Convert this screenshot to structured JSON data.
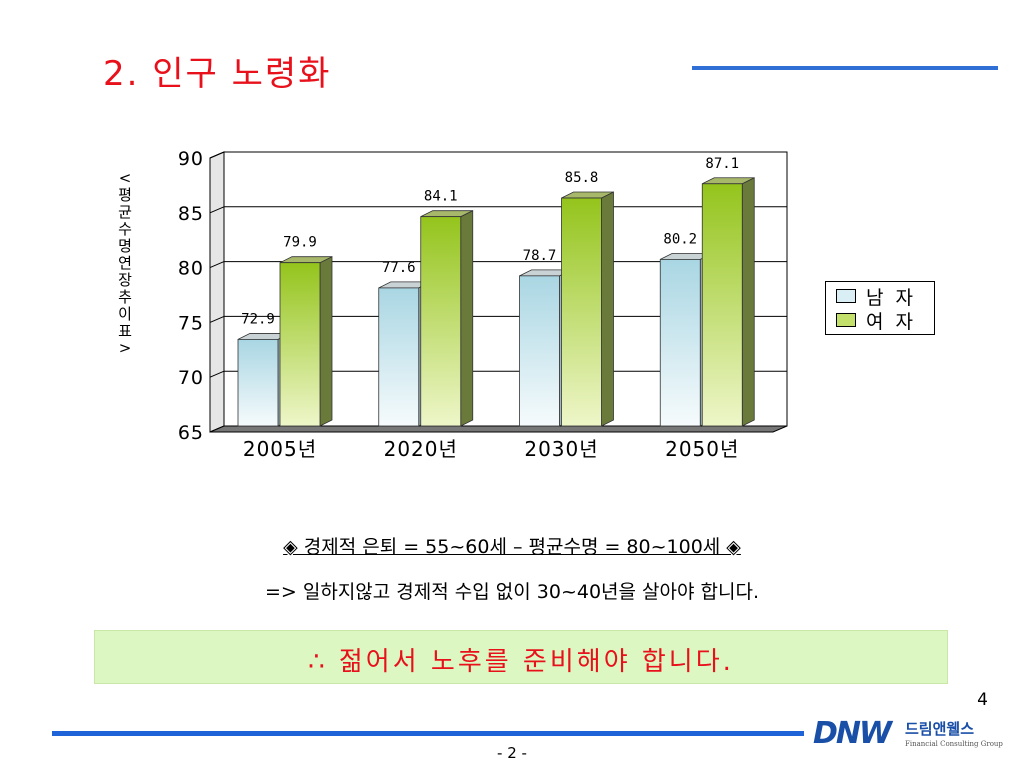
{
  "slide": {
    "title": "2. 인구 노령화",
    "slide_number": "4",
    "page_footer": "- 2 -"
  },
  "chart_data": {
    "type": "bar",
    "title": "",
    "ylabel": "<평균수명 연장 추이표>",
    "xlabel": "",
    "categories": [
      "2005년",
      "2020년",
      "2030년",
      "2050년"
    ],
    "series": [
      {
        "name": "남 자",
        "values": [
          72.9,
          77.6,
          78.7,
          80.2
        ],
        "color": "#bfe3ec"
      },
      {
        "name": "여 자",
        "values": [
          79.9,
          84.1,
          85.8,
          87.1
        ],
        "color": "#a6cf3a"
      }
    ],
    "ylim": [
      65,
      90
    ],
    "yticks": [
      "65",
      "70",
      "75",
      "80",
      "85",
      "90"
    ],
    "grid": true,
    "legend": "right"
  },
  "text": {
    "line1": "◈ 경제적 은퇴 = 55~60세 – 평균수명 = 80~100세 ◈",
    "line2": "=> 일하지않고 경제적 수입 없이 30~40년을 살아야 합니다.",
    "conclusion": "∴ 젊어서 노후를 준비해야 합니다."
  },
  "logo": {
    "mark": "DNW",
    "name_ko": "드림앤웰스",
    "name_en": "Financial Consulting Group"
  },
  "colors": {
    "title": "#e8111b",
    "accent_rule": "#2f6fd6",
    "conclusion_bg": "#ddf7c2"
  }
}
